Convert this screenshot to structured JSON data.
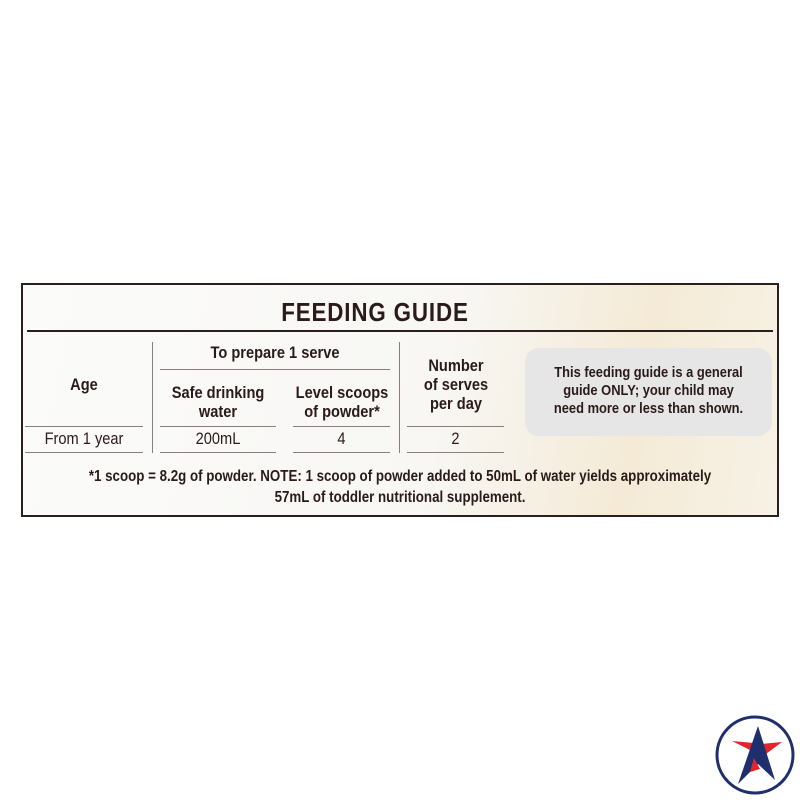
{
  "title": "FEEDING GUIDE",
  "table": {
    "headers": {
      "age": "Age",
      "group": "To prepare 1 serve",
      "water": [
        "Safe drinking",
        "water"
      ],
      "scoops": [
        "Level scoops",
        "of powder*"
      ],
      "serves": [
        "Number",
        "of serves",
        "per day"
      ]
    },
    "row": {
      "age": "From 1 year",
      "water": "200mL",
      "scoops": "4",
      "serves": "2"
    }
  },
  "note": [
    "This feeding guide is a general",
    "guide ONLY; your child may",
    "need more or less than shown."
  ],
  "footnote": [
    "*1 scoop = 8.2g of powder. NOTE: 1 scoop of powder added to 50mL of water yields approximately",
    "57mL of toddler nutritional supplement."
  ],
  "colors": {
    "text": "#2a1a1a",
    "logo_blue": "#1f2f6e",
    "logo_red": "#e0262c"
  }
}
